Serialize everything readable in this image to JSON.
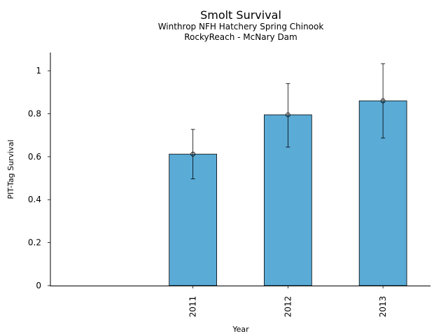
{
  "chart_data": {
    "type": "bar",
    "title": "Smolt Survival",
    "subtitle_lines": [
      "Winthrop NFH Hatchery Spring Chinook",
      "RockyReach - McNary Dam"
    ],
    "xlabel": "Year",
    "ylabel": "PIT-Tag Survival",
    "categories": [
      "2011",
      "2012",
      "2013"
    ],
    "values": [
      0.612,
      0.795,
      0.86
    ],
    "error_low": [
      0.497,
      0.645,
      0.687
    ],
    "error_high": [
      0.727,
      0.94,
      1.033
    ],
    "ylim": [
      0,
      1.085
    ],
    "xlim": [
      -1.5,
      2.5
    ],
    "yticks": [
      0,
      0.2,
      0.4,
      0.6,
      0.8,
      1
    ],
    "ytick_labels": [
      "0",
      "0.2",
      "0.4",
      "0.6",
      "0.8",
      "1"
    ],
    "bar_color": "#5aabd6",
    "grid": false,
    "legend": "none"
  }
}
